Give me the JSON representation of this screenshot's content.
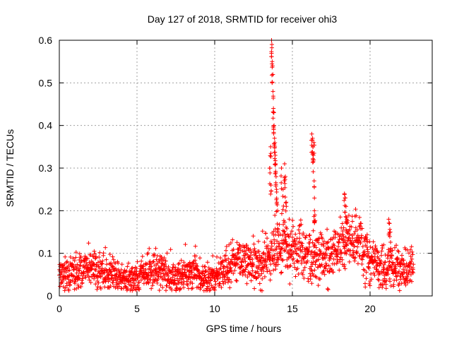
{
  "chart_data": {
    "type": "scatter",
    "title": "Day 127 of 2018, SRMTID for receiver ohi3",
    "xlabel": "GPS time / hours",
    "ylabel": "SRMTID / TECUs",
    "xlim": [
      0,
      24
    ],
    "ylim": [
      0,
      0.6
    ],
    "xticks": [
      "0",
      "5",
      "10",
      "15",
      "20"
    ],
    "yticks": [
      "0",
      "0.1",
      "0.2",
      "0.3",
      "0.4",
      "0.5",
      "0.6"
    ],
    "grid": true,
    "marker": "+",
    "color": "#ff0000",
    "series": [
      {
        "name": "ohi3",
        "trend": [
          [
            0.0,
            0.052
          ],
          [
            0.5,
            0.05
          ],
          [
            1.0,
            0.048
          ],
          [
            1.5,
            0.058
          ],
          [
            2.0,
            0.062
          ],
          [
            2.5,
            0.056
          ],
          [
            3.0,
            0.052
          ],
          [
            3.5,
            0.046
          ],
          [
            4.0,
            0.04
          ],
          [
            4.5,
            0.038
          ],
          [
            5.0,
            0.042
          ],
          [
            5.5,
            0.052
          ],
          [
            6.0,
            0.058
          ],
          [
            6.5,
            0.055
          ],
          [
            7.0,
            0.048
          ],
          [
            7.5,
            0.045
          ],
          [
            8.0,
            0.055
          ],
          [
            8.5,
            0.06
          ],
          [
            9.0,
            0.048
          ],
          [
            9.5,
            0.042
          ],
          [
            10.0,
            0.045
          ],
          [
            10.5,
            0.058
          ],
          [
            11.0,
            0.068
          ],
          [
            11.5,
            0.08
          ],
          [
            12.0,
            0.085
          ],
          [
            12.5,
            0.075
          ],
          [
            13.0,
            0.072
          ],
          [
            13.5,
            0.09
          ],
          [
            14.0,
            0.11
          ],
          [
            14.5,
            0.118
          ],
          [
            15.0,
            0.112
          ],
          [
            15.5,
            0.105
          ],
          [
            16.0,
            0.098
          ],
          [
            16.5,
            0.095
          ],
          [
            17.0,
            0.082
          ],
          [
            17.5,
            0.1
          ],
          [
            18.0,
            0.108
          ],
          [
            18.5,
            0.125
          ],
          [
            19.0,
            0.14
          ],
          [
            19.5,
            0.11
          ],
          [
            20.0,
            0.08
          ],
          [
            20.5,
            0.072
          ],
          [
            21.0,
            0.07
          ],
          [
            21.5,
            0.068
          ],
          [
            22.0,
            0.062
          ],
          [
            22.5,
            0.065
          ],
          [
            22.8,
            0.068
          ]
        ],
        "spikes": [
          [
            13.55,
            0.3
          ],
          [
            13.6,
            0.35
          ],
          [
            13.62,
            0.26
          ],
          [
            13.66,
            0.6
          ],
          [
            13.68,
            0.59
          ],
          [
            13.7,
            0.55
          ],
          [
            13.72,
            0.54
          ],
          [
            13.75,
            0.48
          ],
          [
            13.78,
            0.44
          ],
          [
            13.8,
            0.43
          ],
          [
            13.82,
            0.4
          ],
          [
            13.85,
            0.37
          ],
          [
            13.87,
            0.35
          ],
          [
            13.9,
            0.33
          ],
          [
            13.92,
            0.31
          ],
          [
            13.95,
            0.28
          ],
          [
            13.98,
            0.25
          ],
          [
            14.0,
            0.22
          ],
          [
            14.05,
            0.2
          ],
          [
            14.3,
            0.3
          ],
          [
            14.4,
            0.25
          ],
          [
            14.5,
            0.31
          ],
          [
            14.55,
            0.28
          ],
          [
            14.6,
            0.22
          ],
          [
            16.25,
            0.38
          ],
          [
            16.3,
            0.37
          ],
          [
            16.32,
            0.35
          ],
          [
            16.35,
            0.33
          ],
          [
            16.38,
            0.36
          ],
          [
            16.4,
            0.27
          ],
          [
            16.42,
            0.2
          ],
          [
            16.45,
            0.19
          ],
          [
            18.35,
            0.24
          ],
          [
            18.4,
            0.23
          ],
          [
            18.45,
            0.21
          ],
          [
            18.5,
            0.18
          ],
          [
            21.2,
            0.18
          ],
          [
            21.25,
            0.17
          ],
          [
            21.3,
            0.15
          ]
        ]
      }
    ]
  }
}
